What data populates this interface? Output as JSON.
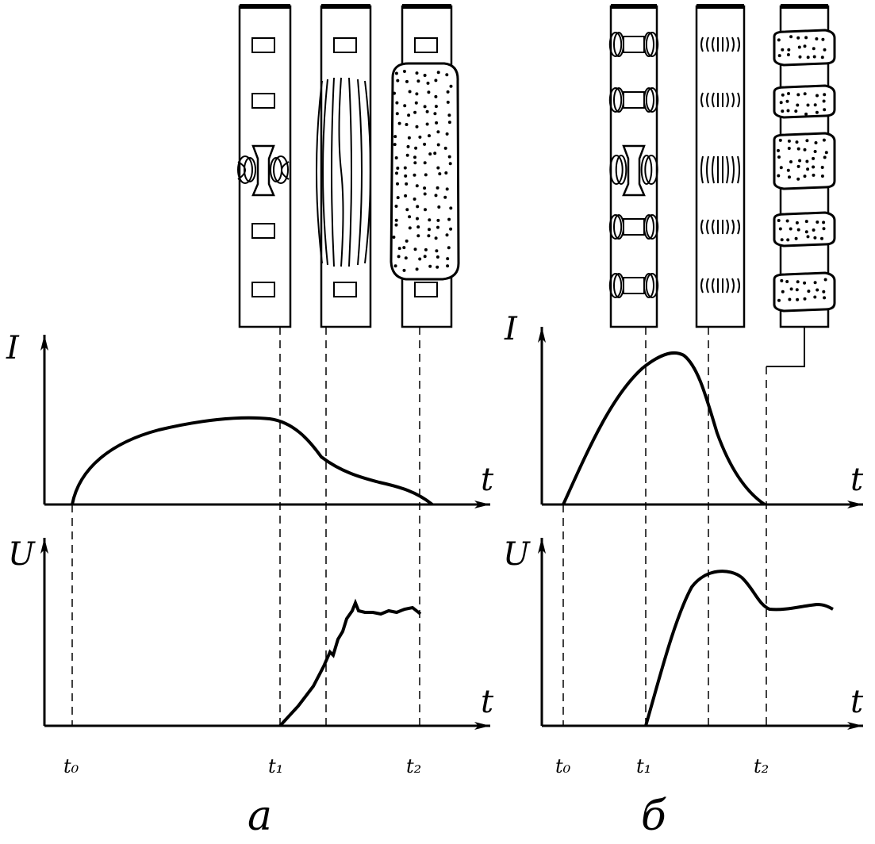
{
  "panels": [
    {
      "id": "a",
      "label": "а",
      "current_axis_label": "I",
      "voltage_axis_label": "U",
      "time_axis_label": "t",
      "time_marks": [
        "t₀",
        "t₁",
        "t₂"
      ],
      "stages": [
        "blocks-with-arc-bridge",
        "wavy-arc-filaments",
        "dotted-plasma-column"
      ]
    },
    {
      "id": "b",
      "label": "б",
      "current_axis_label": "I",
      "voltage_axis_label": "U",
      "time_axis_label": "t",
      "time_marks": [
        "t₀",
        "t₁",
        "t₂"
      ],
      "stages": [
        "coils-on-each-block",
        "arc-rings-on-each-block",
        "dotted-segments-per-block"
      ]
    }
  ],
  "colors": {
    "ink": "#000000",
    "paper": "#ffffff"
  }
}
